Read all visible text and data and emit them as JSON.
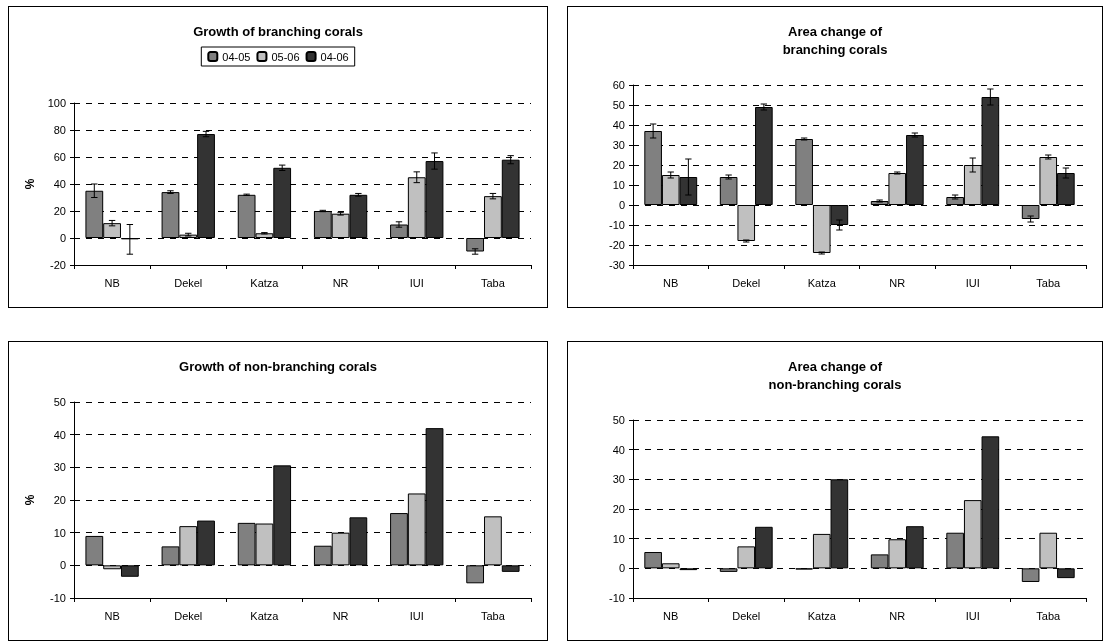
{
  "chart_data": [
    {
      "type": "bar",
      "title": "Growth of branching corals",
      "ylabel": "%",
      "categories": [
        "NB",
        "Dekel",
        "Katza",
        "NR",
        "IUI",
        "Taba"
      ],
      "ylim": [
        -20,
        100
      ],
      "yticks": [
        -20,
        0,
        20,
        40,
        60,
        80,
        100
      ],
      "grid": "y",
      "legend": "top",
      "series": [
        {
          "name": "04-05",
          "color": "#808080",
          "values": [
            35,
            34,
            32,
            20,
            10,
            -10
          ],
          "errors": [
            5,
            1,
            0.5,
            0.5,
            2,
            2
          ]
        },
        {
          "name": "05-06",
          "color": "#c0c0c0",
          "values": [
            11,
            2.5,
            3.5,
            18,
            45,
            31
          ],
          "errors": [
            2,
            1,
            0.5,
            1,
            4,
            2
          ]
        },
        {
          "name": "04-06",
          "color": "#333333",
          "values": [
            -1,
            77,
            52,
            32,
            57,
            58
          ],
          "errors": [
            11,
            2,
            2,
            1,
            6,
            3
          ]
        }
      ]
    },
    {
      "type": "bar",
      "title": "Area change of\nbranching corals",
      "categories": [
        "NB",
        "Dekel",
        "Katza",
        "NR",
        "IUI",
        "Taba"
      ],
      "ylim": [
        -30,
        60
      ],
      "yticks": [
        -30,
        -20,
        -10,
        0,
        10,
        20,
        30,
        40,
        50,
        60
      ],
      "grid": "y",
      "legend": false,
      "series": [
        {
          "color": "#808080",
          "values": [
            37,
            14,
            33,
            2,
            4,
            -7
          ],
          "errors": [
            3.5,
            1,
            0.5,
            0.5,
            1,
            1.5
          ]
        },
        {
          "color": "#c0c0c0",
          "values": [
            15,
            -18,
            -24,
            16,
            20,
            24
          ],
          "errors": [
            1.5,
            0.5,
            0.5,
            0.5,
            3.5,
            1
          ]
        },
        {
          "color": "#333333",
          "values": [
            14,
            49,
            -10,
            35,
            54,
            16
          ],
          "errors": [
            9,
            1.5,
            2.5,
            1,
            4,
            2.5
          ]
        }
      ]
    },
    {
      "type": "bar",
      "title": "Growth of non-branching corals",
      "ylabel": "%",
      "categories": [
        "NB",
        "Dekel",
        "Katza",
        "NR",
        "IUI",
        "Taba"
      ],
      "ylim": [
        -10,
        50
      ],
      "yticks": [
        -10,
        0,
        10,
        20,
        30,
        40,
        50
      ],
      "grid": "y",
      "legend": false,
      "series": [
        {
          "color": "#808080",
          "values": [
            9,
            5.8,
            13,
            6,
            16,
            -5.5
          ]
        },
        {
          "color": "#c0c0c0",
          "values": [
            -1.2,
            12,
            12.8,
            10,
            22,
            15
          ]
        },
        {
          "color": "#333333",
          "values": [
            -3.5,
            13.7,
            30.6,
            14.7,
            42,
            -2
          ]
        }
      ]
    },
    {
      "type": "bar",
      "title": "Area change of\nnon-branching corals",
      "categories": [
        "NB",
        "Dekel",
        "Katza",
        "NR",
        "IUI",
        "Taba"
      ],
      "ylim": [
        -10,
        50
      ],
      "yticks": [
        -10,
        0,
        10,
        20,
        30,
        40,
        50
      ],
      "grid": "y",
      "legend": false,
      "series": [
        {
          "color": "#808080",
          "values": [
            5.5,
            -1.2,
            -0.4,
            4.7,
            12,
            -4.6
          ]
        },
        {
          "color": "#c0c0c0",
          "values": [
            1.7,
            7.4,
            11.6,
            9.8,
            23,
            12
          ]
        },
        {
          "color": "#333333",
          "values": [
            -0.6,
            14,
            30,
            14.2,
            44.5,
            -3.3
          ]
        }
      ]
    }
  ]
}
